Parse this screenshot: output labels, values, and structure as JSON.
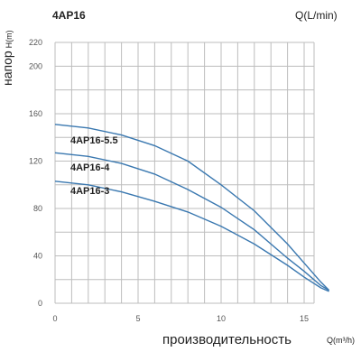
{
  "chart_data": {
    "type": "line",
    "title": "4AP16",
    "top_unit": "Q(L/min)",
    "ylabel": "напор",
    "ylabel_unit": "H(m)",
    "xlabel": "производительность",
    "xlabel_unit": "Q(m³/h)",
    "xlim": [
      0,
      17
    ],
    "ylim": [
      0,
      220
    ],
    "x_ticks": [
      "0",
      "5",
      "10",
      "15"
    ],
    "x_tick_values": [
      0,
      5,
      10,
      15
    ],
    "y_ticks": [
      "0",
      "40",
      "80",
      "120",
      "160",
      "200",
      "220"
    ],
    "y_tick_values": [
      0,
      40,
      80,
      120,
      160,
      200,
      220
    ],
    "grid": true,
    "series": [
      {
        "name": "4AP16-5.5",
        "x": [
          0,
          2,
          4,
          6,
          8,
          10,
          12,
          14,
          15,
          16,
          16.5
        ],
        "y": [
          151,
          148,
          142,
          133,
          120,
          100,
          78,
          50,
          34,
          18,
          11
        ]
      },
      {
        "name": "4AP16-4",
        "x": [
          0,
          2,
          4,
          6,
          8,
          10,
          12,
          14,
          15,
          16,
          16.5
        ],
        "y": [
          127,
          124,
          118,
          109,
          96,
          81,
          62,
          38,
          27,
          15,
          11
        ]
      },
      {
        "name": "4AP16-3",
        "x": [
          0,
          2,
          4,
          6,
          8,
          10,
          12,
          14,
          15,
          16,
          16.5
        ],
        "y": [
          103,
          100,
          94,
          86,
          77,
          65,
          50,
          32,
          22,
          13,
          10
        ]
      }
    ],
    "line_color": "#3a78b0"
  }
}
